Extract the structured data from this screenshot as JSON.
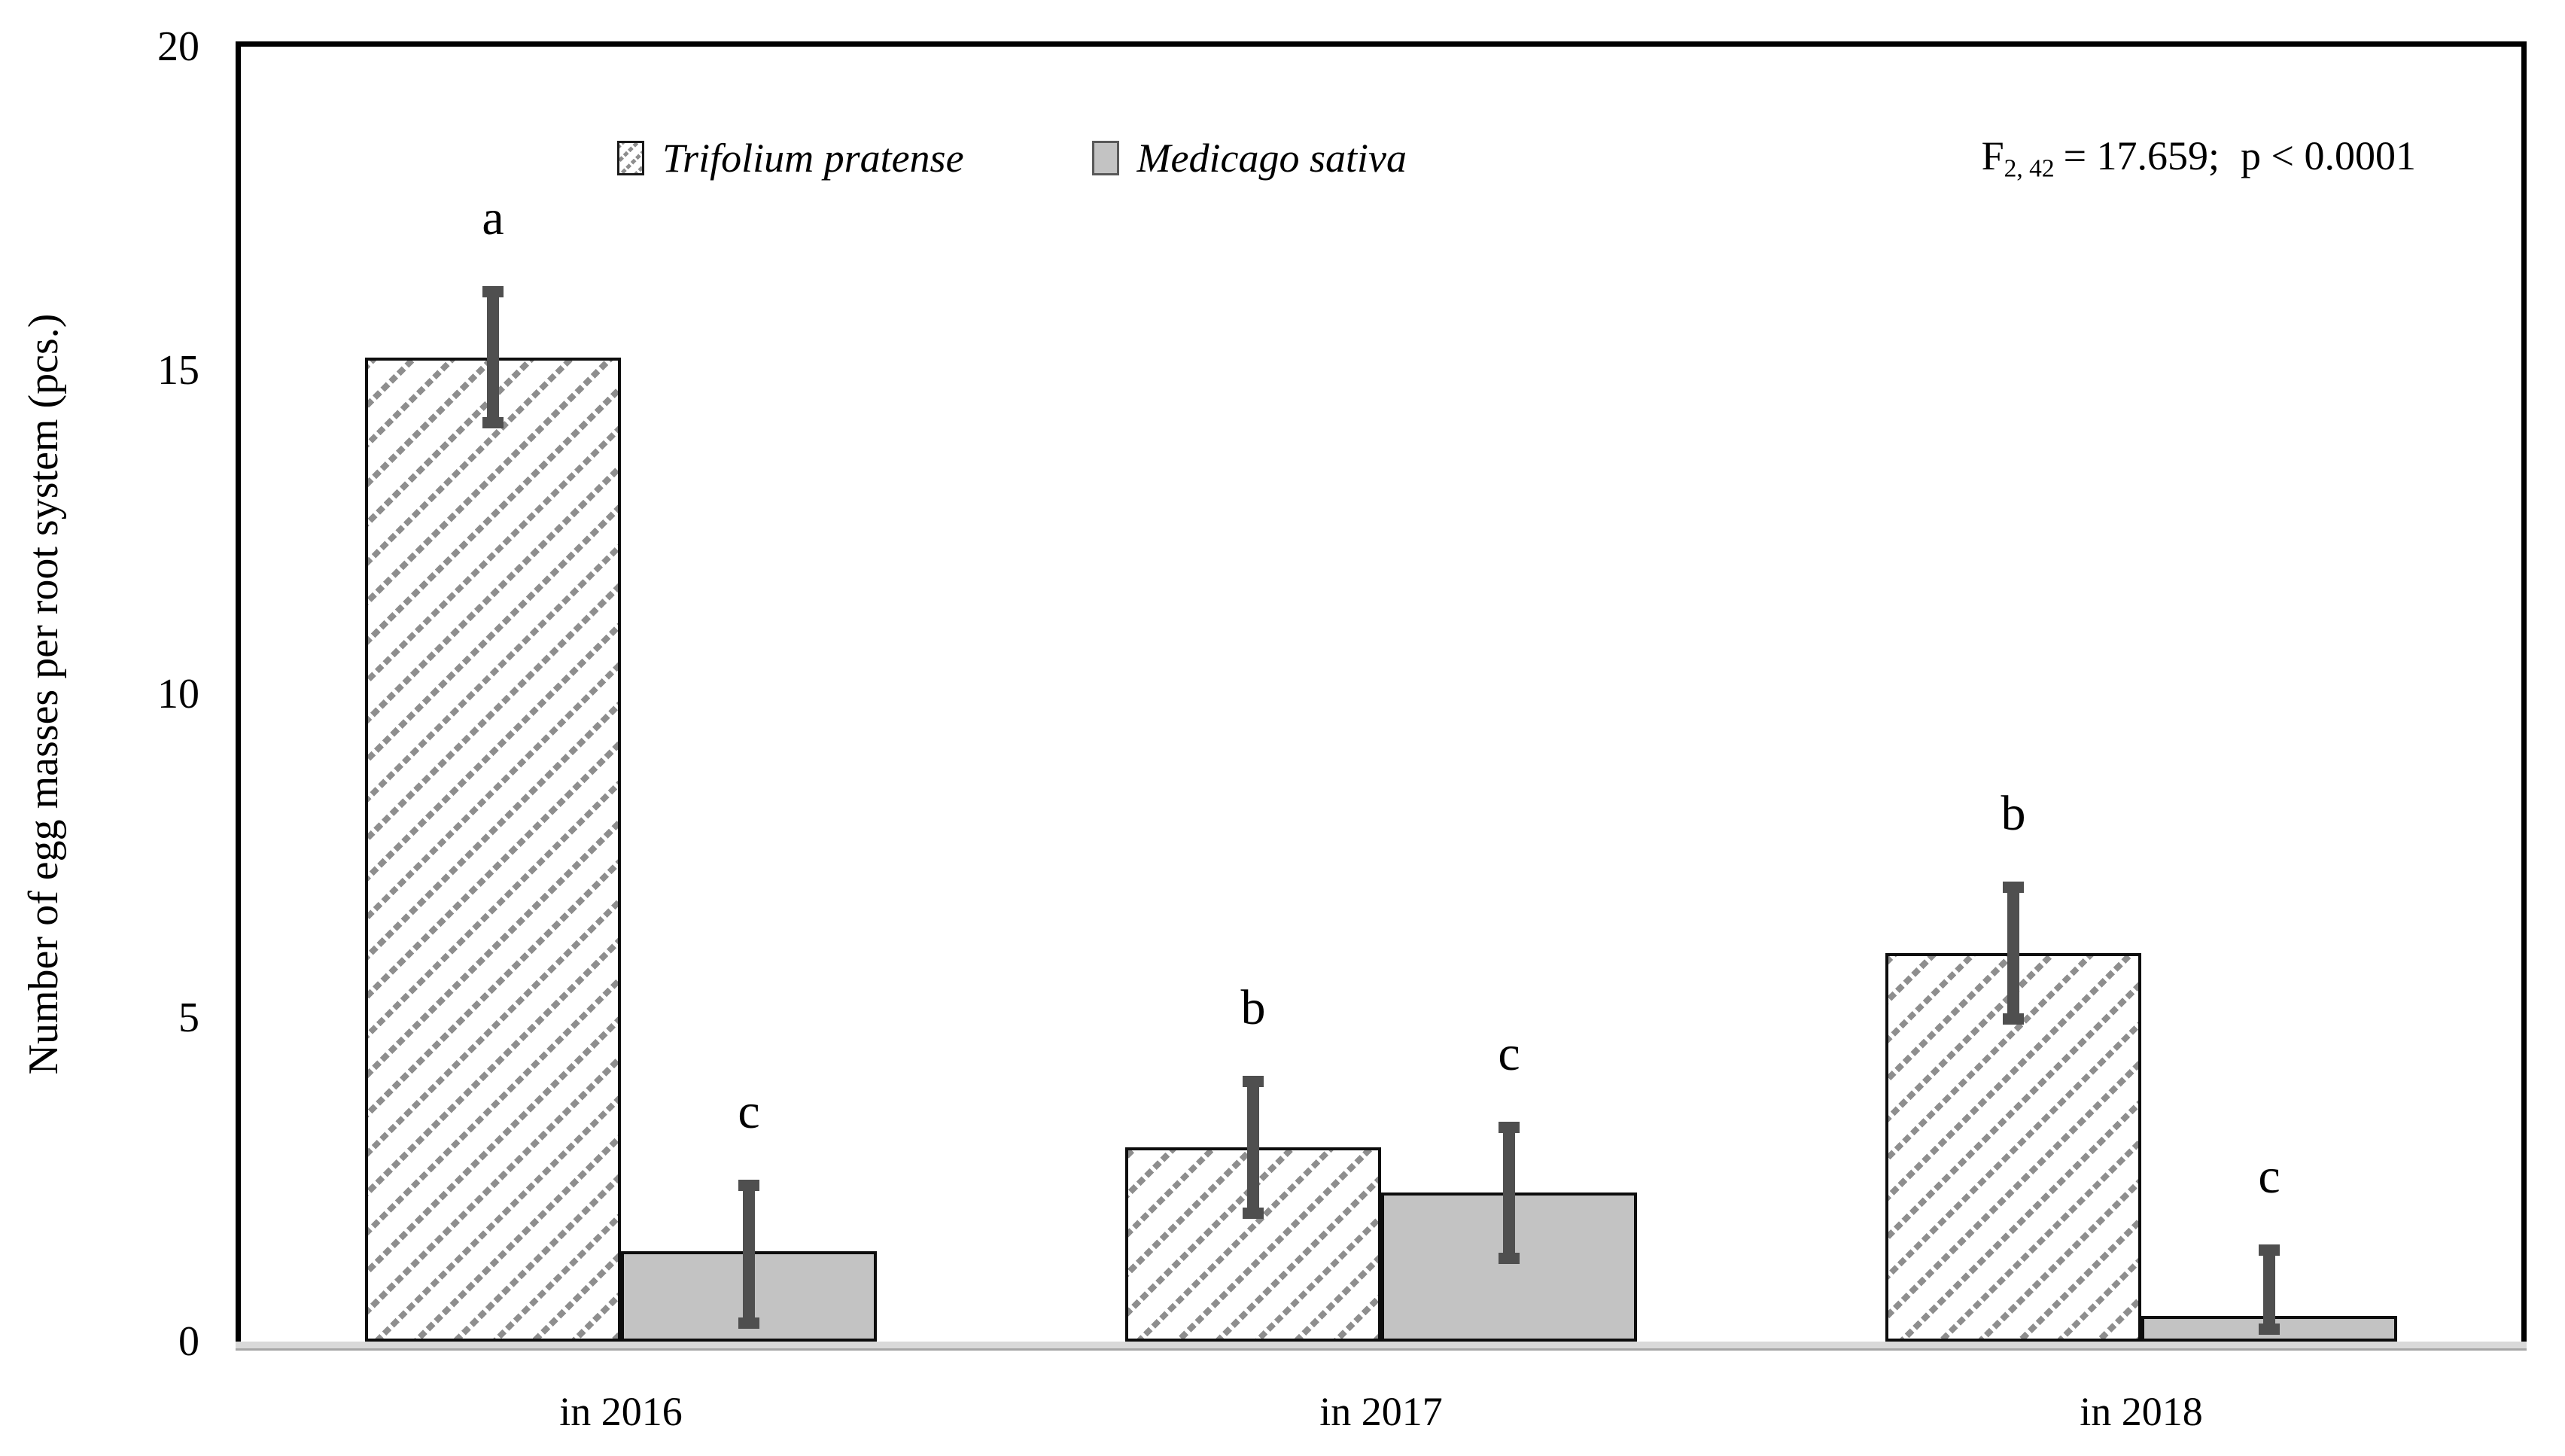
{
  "figure": {
    "background": "#ffffff",
    "stats_annotation": {
      "f": "F",
      "sub": "2, 42",
      "eq": "= 17.659;",
      "p": "p < 0.0001"
    }
  },
  "chart_data": {
    "type": "bar",
    "title": "",
    "xlabel": "",
    "ylabel": "Number of egg masses per root system (pcs.)",
    "ylim": [
      0,
      20
    ],
    "yticks": [
      0,
      5,
      10,
      15,
      20
    ],
    "grid": false,
    "legend_position": "top-left-inside",
    "categories": [
      "in 2016",
      "in 2017",
      "in 2018"
    ],
    "series": [
      {
        "name": "Trifolium pratense",
        "style": "hatched",
        "values": [
          15.2,
          3.0,
          6.0
        ],
        "error_low": [
          14.1,
          1.9,
          4.9
        ],
        "error_high": [
          16.3,
          4.1,
          7.1
        ],
        "sig_letters": [
          "a",
          "b",
          "b"
        ]
      },
      {
        "name": "Medicago sativa",
        "style": "solid-gray",
        "values": [
          1.4,
          2.3,
          0.4
        ],
        "error_low": [
          0.2,
          1.2,
          0.1
        ],
        "error_high": [
          2.5,
          3.4,
          1.5
        ],
        "sig_letters": [
          "c",
          "c",
          "c"
        ]
      }
    ],
    "annotation": "F2,42 = 17.659; p < 0.0001"
  },
  "colors": {
    "hatch_stripe": "#8e8e8e",
    "bar_fill_gray": "#c3c3c3",
    "bar_border": "#0d0d0d",
    "error_bar": "#4f4f4f",
    "frame": "#000000",
    "axis_band": "#d9d9d9",
    "axis_band_edge": "#a6a6a6",
    "text": "#000000"
  }
}
